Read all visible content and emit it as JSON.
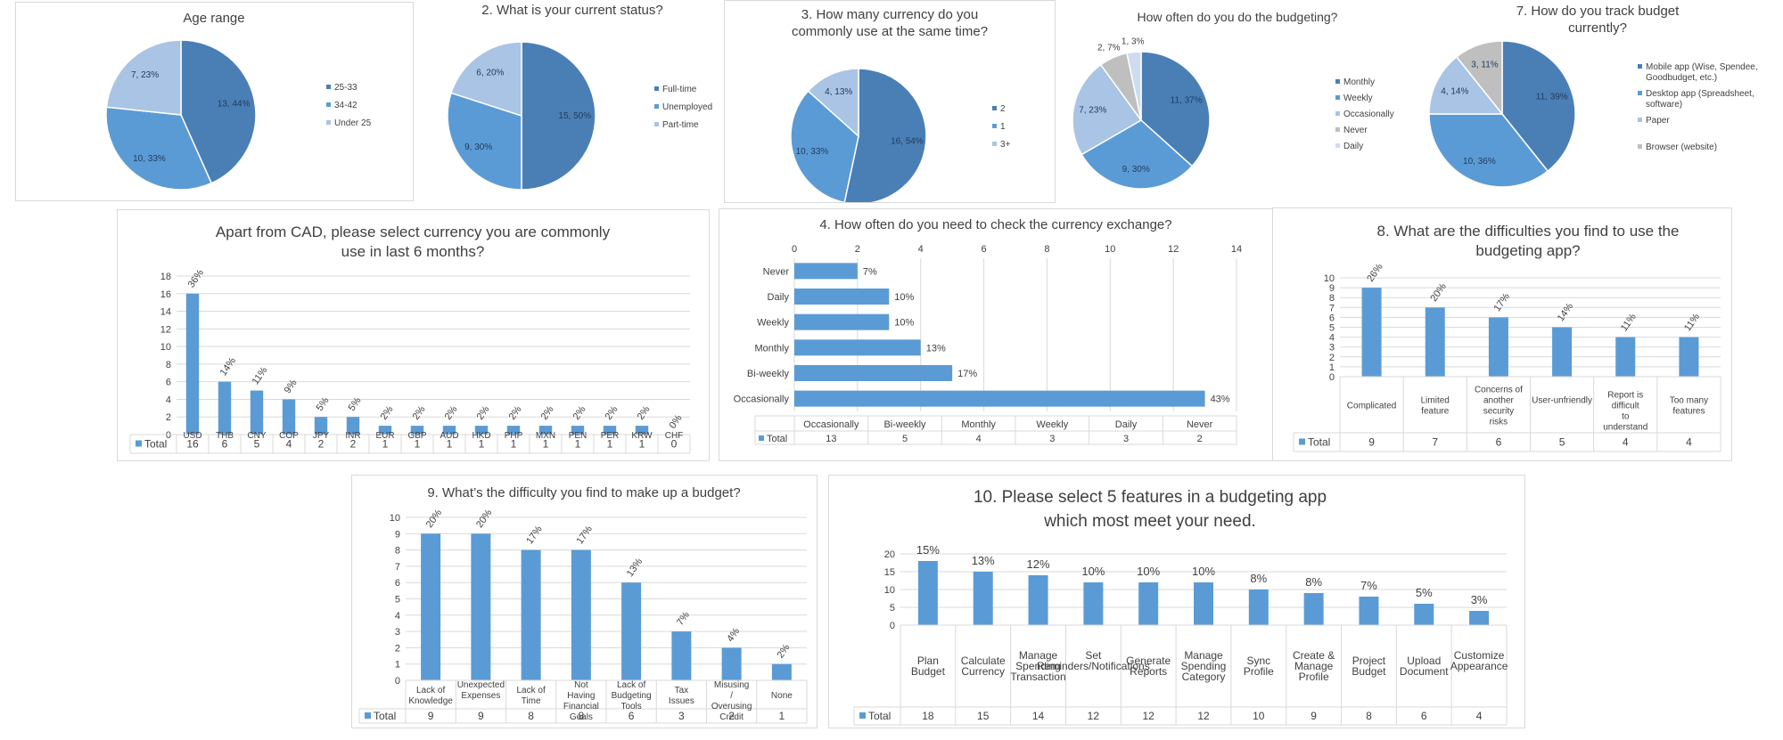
{
  "colors": {
    "primary": "#4a7fb5",
    "secondary": "#5b9bd5",
    "tertiary": "#a9c4e4",
    "quaternary": "#bfbfbf",
    "quinary": "#cfdcef",
    "bar": "#5b9bd5",
    "grid": "#d9d9d9",
    "text": "#404040"
  },
  "chart_data": [
    {
      "id": "age",
      "type": "pie",
      "title": "Age range",
      "slices": [
        {
          "name": "25-33",
          "value": 13,
          "label": "13, 44%"
        },
        {
          "name": "34-42",
          "value": 10,
          "label": "10, 33%"
        },
        {
          "name": "Under 25",
          "value": 7,
          "label": "7, 23%"
        }
      ],
      "legend": "right"
    },
    {
      "id": "status",
      "type": "pie",
      "title": "2. What is your current status?",
      "slices": [
        {
          "name": "Full-time",
          "value": 15,
          "label": "15, 50%"
        },
        {
          "name": "Unemployed",
          "value": 9,
          "label": "9, 30%"
        },
        {
          "name": "Part-time",
          "value": 6,
          "label": "6, 20%"
        }
      ],
      "legend": "right"
    },
    {
      "id": "currency_count",
      "type": "pie",
      "title": "3. How many currency do you commonly use at the same time?",
      "slices": [
        {
          "name": "2",
          "value": 16,
          "label": "16, 54%"
        },
        {
          "name": "1",
          "value": 10,
          "label": "10, 33%"
        },
        {
          "name": "3+",
          "value": 4,
          "label": "4, 13%"
        }
      ],
      "legend": "right"
    },
    {
      "id": "budgeting_freq",
      "type": "pie",
      "title": "How often do you do the budgeting?",
      "slices": [
        {
          "name": "Monthly",
          "value": 11,
          "label": "11, 37%"
        },
        {
          "name": "Weekly",
          "value": 9,
          "label": "9, 30%"
        },
        {
          "name": "Occasionally",
          "value": 7,
          "label": "7, 23%"
        },
        {
          "name": "Never",
          "value": 2,
          "label": "2, 7%"
        },
        {
          "name": "Daily",
          "value": 1,
          "label": "1, 3%"
        }
      ],
      "legend": "right"
    },
    {
      "id": "track_budget",
      "type": "pie",
      "title": "7. How do you track budget currently?",
      "slices": [
        {
          "name": "Mobile app (Wise, Spendee, Goodbudget, etc.)",
          "value": 11,
          "label": "11, 39%"
        },
        {
          "name": "Desktop app (Spreadsheet, software)",
          "value": 10,
          "label": "10, 36%"
        },
        {
          "name": "Paper",
          "value": 4,
          "label": "4, 14%"
        },
        {
          "name": "Browser (website)",
          "value": 3,
          "label": "3, 11%"
        }
      ],
      "legend": "right"
    },
    {
      "id": "currencies",
      "type": "bar",
      "title": "Apart from CAD, please select currency you are commonly use in last 6 months?",
      "categories": [
        "USD",
        "THB",
        "CNY",
        "COP",
        "JPY",
        "INR",
        "EUR",
        "GBP",
        "AUD",
        "HKD",
        "PHP",
        "MXN",
        "PEN",
        "PER",
        "KRW",
        "CHF"
      ],
      "values": [
        16,
        6,
        5,
        4,
        2,
        2,
        1,
        1,
        1,
        1,
        1,
        1,
        1,
        1,
        1,
        0
      ],
      "data_labels": [
        "36%",
        "14%",
        "11%",
        "9%",
        "5%",
        "5%",
        "2%",
        "2%",
        "2%",
        "2%",
        "2%",
        "2%",
        "2%",
        "2%",
        "2%",
        "0%"
      ],
      "ylim": [
        0,
        18
      ],
      "yticks": [
        "0",
        "2",
        "4",
        "6",
        "8",
        "10",
        "12",
        "14",
        "16",
        "18"
      ],
      "series_name": "Total",
      "grid": true
    },
    {
      "id": "exchange_check",
      "type": "bar",
      "orientation": "horizontal",
      "title": "4. How often do you need to check the currency exchange?",
      "categories": [
        "Occasionally",
        "Bi-weekly",
        "Monthly",
        "Weekly",
        "Daily",
        "Never"
      ],
      "values": [
        13,
        5,
        4,
        3,
        3,
        2
      ],
      "data_labels": [
        "43%",
        "17%",
        "13%",
        "10%",
        "10%",
        "7%"
      ],
      "xlim": [
        0,
        14
      ],
      "xticks": [
        "0",
        "2",
        "4",
        "6",
        "8",
        "10",
        "12",
        "14"
      ],
      "series_name": "Total",
      "grid": true
    },
    {
      "id": "app_difficulties",
      "type": "bar",
      "title": "8. What are the difficulties you find to use the budgeting app?",
      "categories": [
        "Complicated",
        "Limited feature",
        "Concerns of another security risks",
        "User-unfriendly",
        "Report is difficult to understand",
        "Too many features"
      ],
      "values": [
        9,
        7,
        6,
        5,
        4,
        4
      ],
      "data_labels": [
        "26%",
        "20%",
        "17%",
        "14%",
        "11%",
        "11%"
      ],
      "ylim": [
        0,
        10
      ],
      "yticks": [
        "0",
        "1",
        "2",
        "3",
        "4",
        "5",
        "6",
        "7",
        "8",
        "9",
        "10"
      ],
      "series_name": "Total",
      "grid": true
    },
    {
      "id": "budget_difficulty",
      "type": "bar",
      "title": "9. What’s the difficulty you find to make up a budget?",
      "categories": [
        "Lack of Knowledge",
        "Unexpected Expenses",
        "Lack of Time",
        "Not Having Financial Goals",
        "Lack of Budgeting Tools",
        "Tax Issues",
        "Misusing / Overusing Credit",
        "None"
      ],
      "values": [
        9,
        9,
        8,
        8,
        6,
        3,
        2,
        1
      ],
      "data_labels": [
        "20%",
        "20%",
        "17%",
        "17%",
        "13%",
        "7%",
        "4%",
        "2%"
      ],
      "ylim": [
        0,
        10
      ],
      "yticks": [
        "0",
        "1",
        "2",
        "3",
        "4",
        "5",
        "6",
        "7",
        "8",
        "9",
        "10"
      ],
      "series_name": "Total",
      "grid": true
    },
    {
      "id": "features",
      "type": "bar",
      "title": "10. Please select 5 features in a budgeting app which most meet your need.",
      "categories": [
        "Plan Budget",
        "Calculate Currency",
        "Manage Spending Transaction",
        "Set Reminders/Notifications",
        "Generate Reports",
        "Manage Spending Category",
        "Sync Profile",
        "Create & Manage Profile",
        "Project Budget",
        "Upload Document",
        "Customize Appearance"
      ],
      "values": [
        18,
        15,
        14,
        12,
        12,
        12,
        10,
        9,
        8,
        6,
        4
      ],
      "data_labels": [
        "15%",
        "13%",
        "12%",
        "10%",
        "10%",
        "10%",
        "8%",
        "8%",
        "7%",
        "5%",
        "3%"
      ],
      "ylim": [
        0,
        20
      ],
      "yticks": [
        "0",
        "5",
        "10",
        "15",
        "20"
      ],
      "series_name": "Total",
      "grid": true
    }
  ]
}
